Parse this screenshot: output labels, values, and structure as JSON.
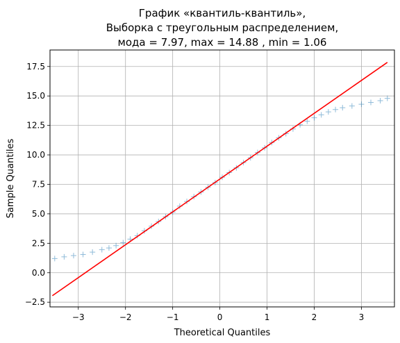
{
  "chart_data": {
    "type": "scatter",
    "title_lines": [
      "График «квантиль-квантиль»,",
      "Выборка с треугольным распределением,",
      "мода = 7.97, max = 14.88 , min = 1.06"
    ],
    "xlabel": "Theoretical Quantiles",
    "ylabel": "Sample Quantiles",
    "xlim": [
      -3.6,
      3.7
    ],
    "ylim": [
      -2.9,
      18.9
    ],
    "xticks": [
      -3,
      -2,
      -1,
      0,
      1,
      2,
      3
    ],
    "xtick_labels": [
      "−3",
      "−2",
      "−1",
      "0",
      "1",
      "2",
      "3"
    ],
    "yticks": [
      -2.5,
      0.0,
      2.5,
      5.0,
      7.5,
      10.0,
      12.5,
      15.0,
      17.5
    ],
    "ytick_labels": [
      "−2.5",
      "0.0",
      "2.5",
      "5.0",
      "7.5",
      "10.0",
      "12.5",
      "15.0",
      "17.5"
    ],
    "grid": true,
    "series": [
      {
        "marker": "+",
        "color": "#1f77b4",
        "alpha": 0.5,
        "x": [
          -3.5,
          -3.3,
          -3.1,
          -2.9,
          -2.7,
          -2.5,
          -2.35,
          -2.2,
          -2.05,
          -1.9,
          -1.75,
          -1.6,
          -1.45,
          -1.3,
          -1.15,
          -1.0,
          -0.85,
          -0.7,
          -0.55,
          -0.4,
          -0.25,
          -0.1,
          0.05,
          0.2,
          0.35,
          0.5,
          0.65,
          0.8,
          0.95,
          1.1,
          1.25,
          1.4,
          1.55,
          1.7,
          1.85,
          2.0,
          2.15,
          2.3,
          2.45,
          2.6,
          2.8,
          3.0,
          3.2,
          3.4,
          3.55
        ],
        "y": [
          1.2,
          1.35,
          1.45,
          1.55,
          1.75,
          1.95,
          2.1,
          2.3,
          2.55,
          2.85,
          3.15,
          3.55,
          3.95,
          4.35,
          4.75,
          5.15,
          5.65,
          6.05,
          6.45,
          6.85,
          7.25,
          7.65,
          8.1,
          8.5,
          8.9,
          9.35,
          9.75,
          10.2,
          10.6,
          11.05,
          11.45,
          11.8,
          12.2,
          12.55,
          12.85,
          13.15,
          13.4,
          13.65,
          13.85,
          14.0,
          14.15,
          14.3,
          14.45,
          14.6,
          14.8
        ]
      },
      {
        "type": "line",
        "color": "#ff0000",
        "x": [
          -3.55,
          3.55
        ],
        "y": [
          -1.95,
          17.85
        ]
      }
    ]
  }
}
